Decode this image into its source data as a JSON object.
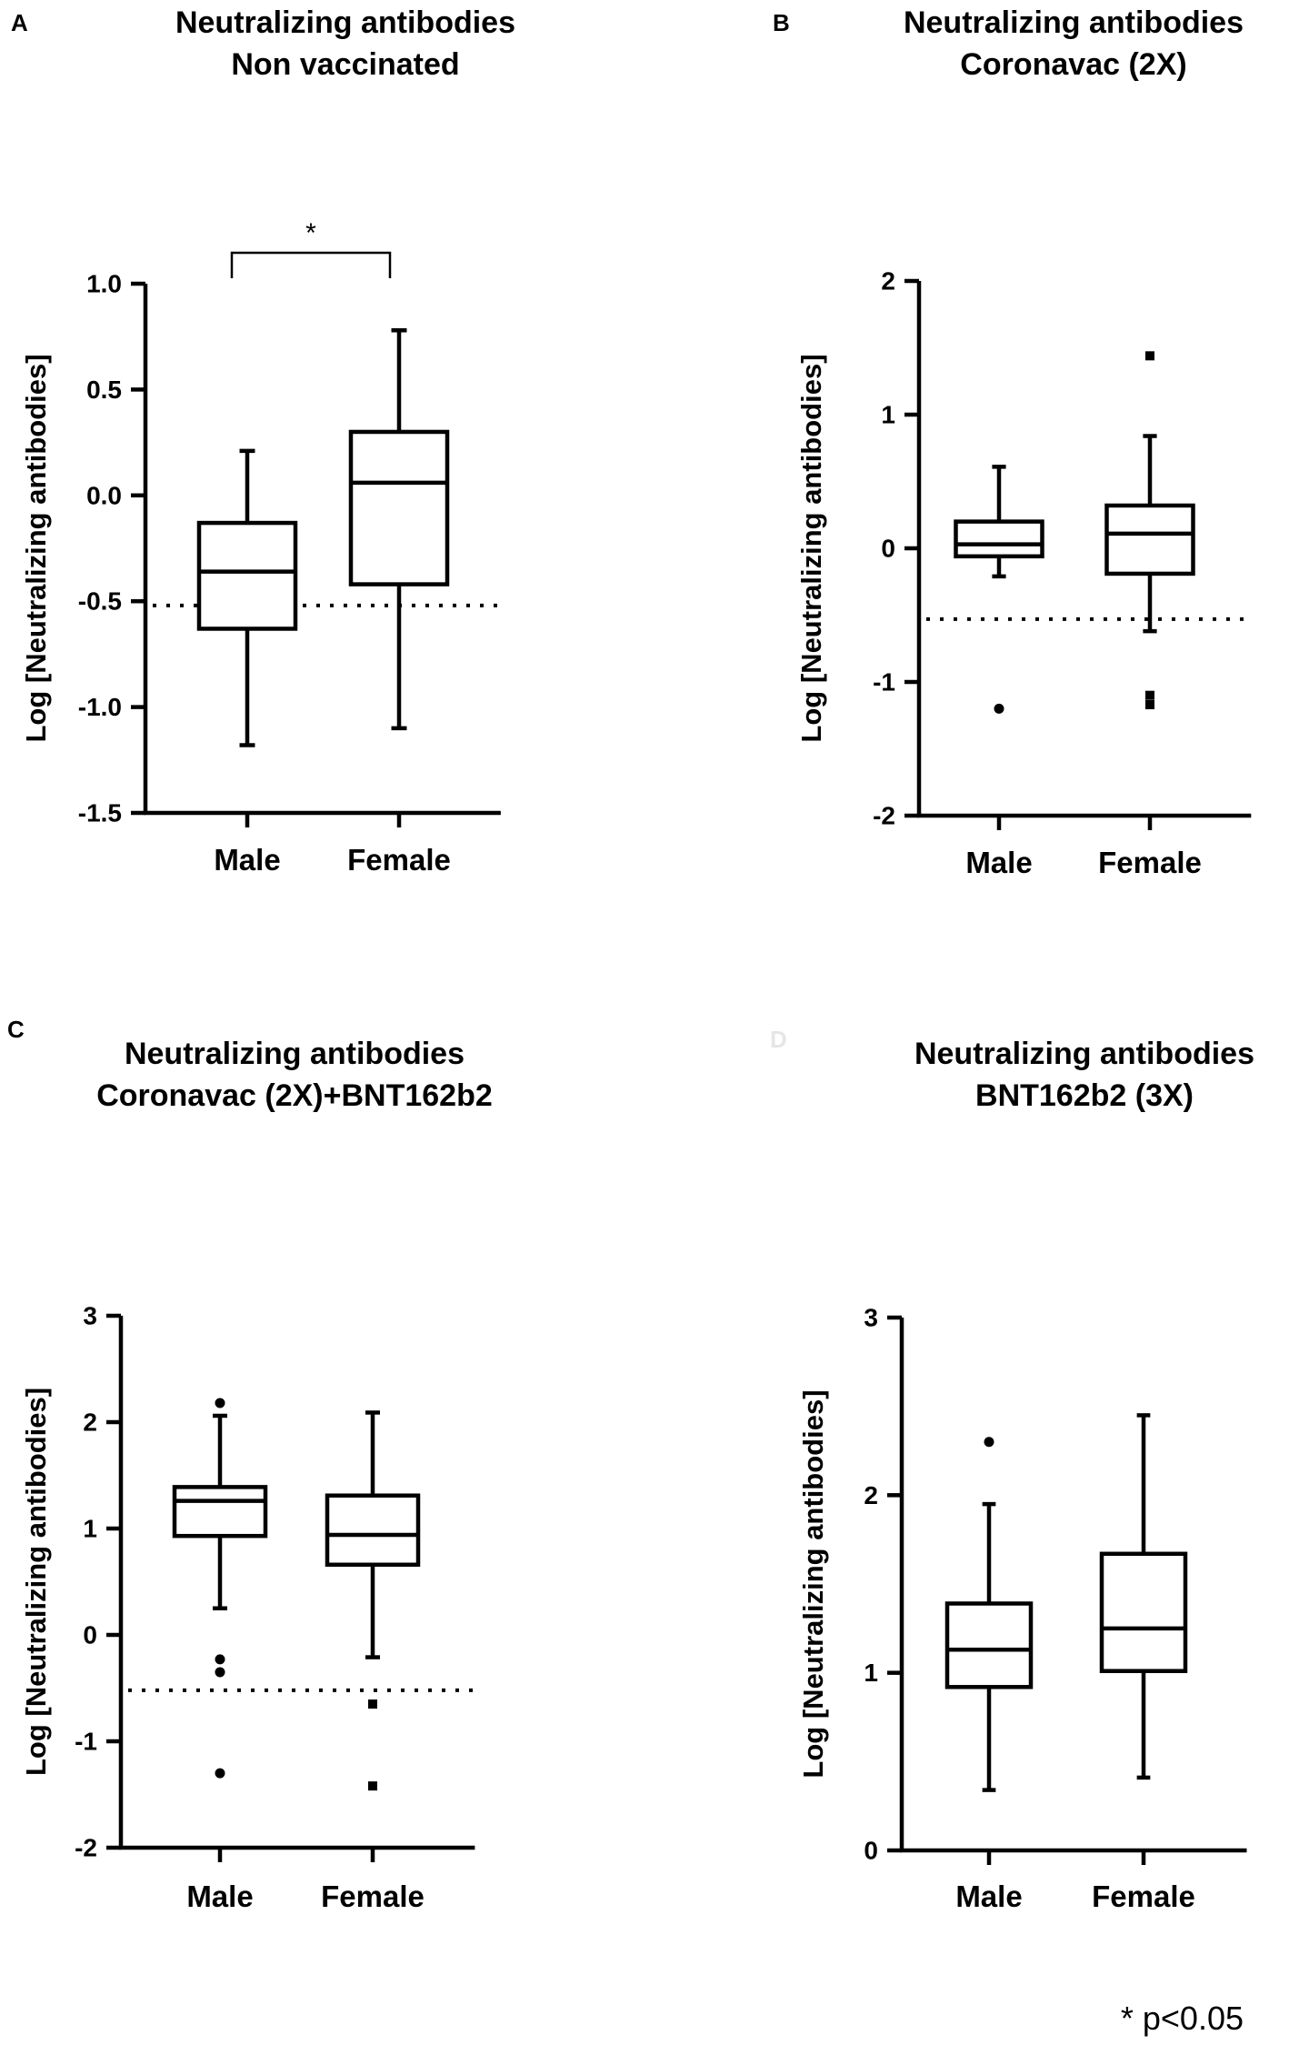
{
  "footnote": "* p<0.05",
  "chart_data": [
    {
      "type": "box",
      "panel": "A",
      "title": [
        "Neutralizing antibodies",
        "Non vaccinated"
      ],
      "ylabel": "Log [Neutralizing antibodies]",
      "categories": [
        "Male",
        "Female"
      ],
      "ylim": [
        -1.5,
        1.0
      ],
      "yticks": [
        1.0,
        0.5,
        0.0,
        -0.5,
        -1.0,
        -1.5
      ],
      "ytick_labels": [
        "1.0",
        "0.5",
        "0.0",
        "-0.5",
        "-1.0",
        "-1.5"
      ],
      "cutoff": -0.52,
      "boxes": [
        {
          "name": "Male",
          "min": -1.18,
          "q1": -0.63,
          "median": -0.36,
          "q3": -0.13,
          "max": 0.21,
          "outliers": []
        },
        {
          "name": "Female",
          "min": -1.1,
          "q1": -0.42,
          "median": 0.06,
          "q3": 0.3,
          "max": 0.78,
          "outliers": []
        }
      ],
      "significance": {
        "between": [
          0,
          1
        ],
        "label": "*"
      }
    },
    {
      "type": "box",
      "panel": "B",
      "title": [
        "Neutralizing antibodies",
        "Coronavac (2X)"
      ],
      "ylabel": "Log [Neutralizing antibodies]",
      "categories": [
        "Male",
        "Female"
      ],
      "ylim": [
        -2,
        2
      ],
      "yticks": [
        2,
        1,
        0,
        -1,
        -2
      ],
      "ytick_labels": [
        "2",
        "1",
        "0",
        "-1",
        "-2"
      ],
      "cutoff": -0.53,
      "boxes": [
        {
          "name": "Male",
          "min": -0.21,
          "q1": -0.06,
          "median": 0.03,
          "q3": 0.2,
          "max": 0.61,
          "outliers": [
            -1.2
          ]
        },
        {
          "name": "Female",
          "min": -0.62,
          "q1": -0.19,
          "median": 0.11,
          "q3": 0.32,
          "max": 0.84,
          "outliers": [
            1.44,
            -1.1,
            -1.17
          ]
        }
      ]
    },
    {
      "type": "box",
      "panel": "C",
      "title": [
        "Neutralizing antibodies",
        "Coronavac (2X)+BNT162b2"
      ],
      "ylabel": "Log [Neutralizing antibodies]",
      "categories": [
        "Male",
        "Female"
      ],
      "ylim": [
        -2,
        3
      ],
      "yticks": [
        3,
        2,
        1,
        0,
        -1,
        -2
      ],
      "ytick_labels": [
        "3",
        "2",
        "1",
        "0",
        "-1",
        "-2"
      ],
      "cutoff": -0.52,
      "boxes": [
        {
          "name": "Male",
          "min": 0.25,
          "q1": 0.93,
          "median": 1.26,
          "q3": 1.39,
          "max": 2.06,
          "outliers": [
            2.18,
            -0.23,
            -0.35,
            -1.3
          ]
        },
        {
          "name": "Female",
          "min": -0.21,
          "q1": 0.66,
          "median": 0.94,
          "q3": 1.31,
          "max": 2.09,
          "outliers": [
            -0.65,
            -1.42
          ]
        }
      ]
    },
    {
      "type": "box",
      "panel": "D",
      "title": [
        "Neutralizing antibodies",
        "BNT162b2 (3X)"
      ],
      "ylabel": "Log [Neutralizing antibodies]",
      "categories": [
        "Male",
        "Female"
      ],
      "ylim": [
        0,
        3
      ],
      "yticks": [
        3,
        2,
        1,
        0
      ],
      "ytick_labels": [
        "3",
        "2",
        "1",
        "0"
      ],
      "cutoff": null,
      "boxes": [
        {
          "name": "Male",
          "min": 0.34,
          "q1": 0.92,
          "median": 1.13,
          "q3": 1.39,
          "max": 1.95,
          "outliers": [
            2.3
          ]
        },
        {
          "name": "Female",
          "min": 0.41,
          "q1": 1.01,
          "median": 1.25,
          "q3": 1.67,
          "max": 2.45,
          "outliers": []
        }
      ]
    }
  ]
}
